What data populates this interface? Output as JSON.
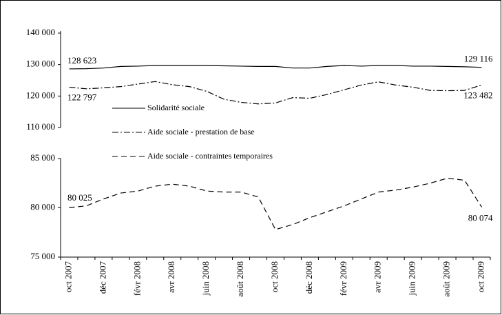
{
  "chart_data": {
    "type": "line",
    "categories": [
      "oct 2007",
      null,
      "déc 2007",
      null,
      "févr 2008",
      null,
      "avr 2008",
      null,
      "juin 2008",
      null,
      "août 2008",
      null,
      "oct 2008",
      null,
      "déc 2008",
      null,
      "févr 2009",
      null,
      "avr 2009",
      null,
      "juin 2009",
      null,
      "août 2009",
      null,
      "oct 2009"
    ],
    "ylim": [
      110000,
      140000
    ],
    "yticks": [
      {
        "value": 110000,
        "label": "110 000"
      },
      {
        "value": 120000,
        "label": "120 000"
      },
      {
        "value": 130000,
        "label": "130 000"
      },
      {
        "value": 140000,
        "label": "140 000"
      }
    ],
    "y2lim": [
      75000,
      85000
    ],
    "y2ticks": [
      {
        "value": 75000,
        "label": "75 000"
      },
      {
        "value": 80000,
        "label": "80 000"
      },
      {
        "value": 85000,
        "label": "85 000"
      }
    ],
    "series": [
      {
        "name": "Solidarité sociale",
        "color": "#000000",
        "line_style": "solid",
        "values": [
          128623,
          128700,
          128900,
          129400,
          129500,
          129700,
          129700,
          129700,
          129700,
          129600,
          129500,
          129400,
          129400,
          128900,
          128900,
          129400,
          129700,
          129500,
          129700,
          129700,
          129500,
          129500,
          129400,
          129300,
          129116
        ],
        "value_labels": [
          "128 623",
          null,
          null,
          null,
          null,
          null,
          null,
          null,
          null,
          null,
          null,
          null,
          null,
          null,
          null,
          null,
          null,
          null,
          null,
          null,
          null,
          null,
          null,
          null,
          "129 116"
        ]
      },
      {
        "name": "Aide sociale - prestation de base",
        "color": "#000000",
        "line_style": "dashdot",
        "values": [
          122797,
          122300,
          122600,
          123000,
          123800,
          124600,
          123600,
          123000,
          121500,
          119000,
          118000,
          117500,
          117800,
          119500,
          119300,
          120500,
          122000,
          123500,
          124500,
          123500,
          122800,
          121800,
          121700,
          121800,
          123482
        ],
        "value_labels": [
          "122 797",
          null,
          null,
          null,
          null,
          null,
          null,
          null,
          null,
          null,
          null,
          null,
          null,
          null,
          null,
          null,
          null,
          null,
          null,
          null,
          null,
          null,
          null,
          null,
          "123 482"
        ]
      },
      {
        "name": "Aide sociale - contraintes temporaires",
        "color": "#000000",
        "line_style": "dashed",
        "axis": "y2",
        "values": [
          80025,
          80200,
          80900,
          81500,
          81700,
          82200,
          82400,
          82200,
          81700,
          81600,
          81600,
          81100,
          77800,
          78300,
          79000,
          79600,
          80200,
          80900,
          81600,
          81800,
          82100,
          82500,
          83000,
          82800,
          80074
        ],
        "value_labels": [
          "80 025",
          null,
          null,
          null,
          null,
          null,
          null,
          null,
          null,
          null,
          null,
          null,
          null,
          null,
          null,
          null,
          null,
          null,
          null,
          null,
          null,
          null,
          null,
          null,
          "80 074"
        ]
      }
    ]
  }
}
